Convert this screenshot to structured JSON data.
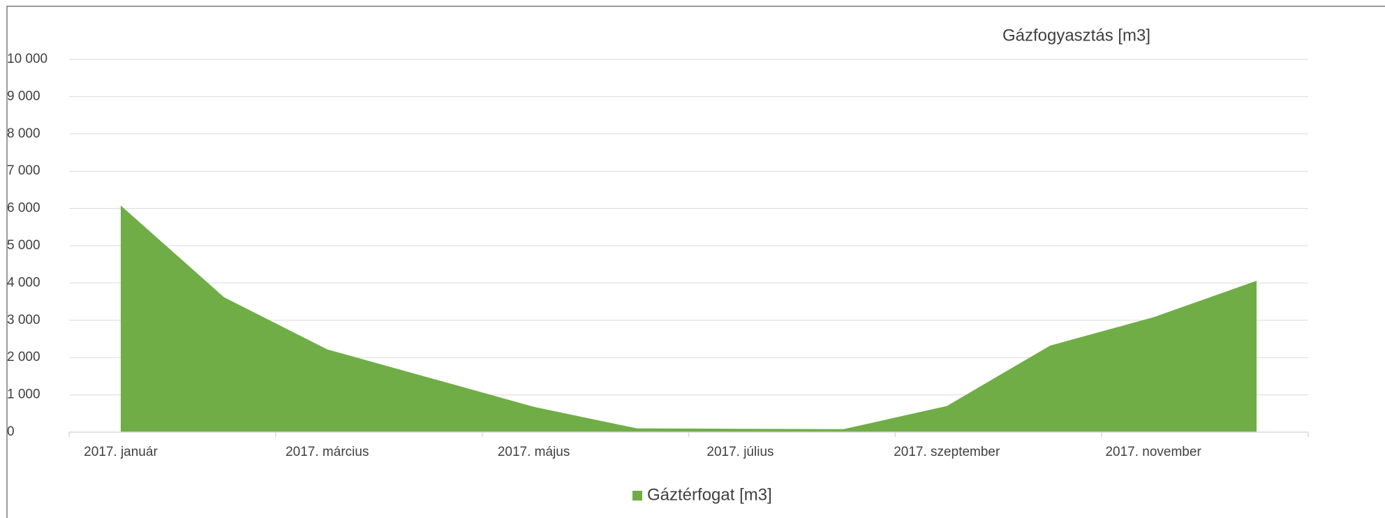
{
  "chart_data": {
    "type": "area",
    "title": "Gázfogyasztás [m3]",
    "categories": [
      "2017. január",
      null,
      "2017. március",
      null,
      "2017. május",
      null,
      "2017. július",
      null,
      "2017. szeptember",
      null,
      "2017. november",
      null
    ],
    "series": [
      {
        "name": "Gáztérfogat [m3]",
        "color": "#70ad47",
        "values": [
          6080,
          3620,
          2220,
          1450,
          680,
          100,
          90,
          80,
          700,
          2320,
          3080,
          4060
        ]
      }
    ],
    "ylim": [
      0,
      10000
    ],
    "yticks": [
      0,
      {
        "value": 1000,
        "label": "1 000"
      },
      {
        "value": 2000,
        "label": "2 000"
      },
      {
        "value": 3000,
        "label": "3 000"
      },
      {
        "value": 4000,
        "label": "4 000"
      },
      {
        "value": 5000,
        "label": "5 000"
      },
      {
        "value": 6000,
        "label": "6 000"
      },
      {
        "value": 7000,
        "label": "7 000"
      },
      {
        "value": 8000,
        "label": "8 000"
      },
      {
        "value": 9000,
        "label": "9 000"
      },
      {
        "value": 10000,
        "label": "10 000"
      }
    ],
    "grid": true,
    "legend": "bottom"
  }
}
